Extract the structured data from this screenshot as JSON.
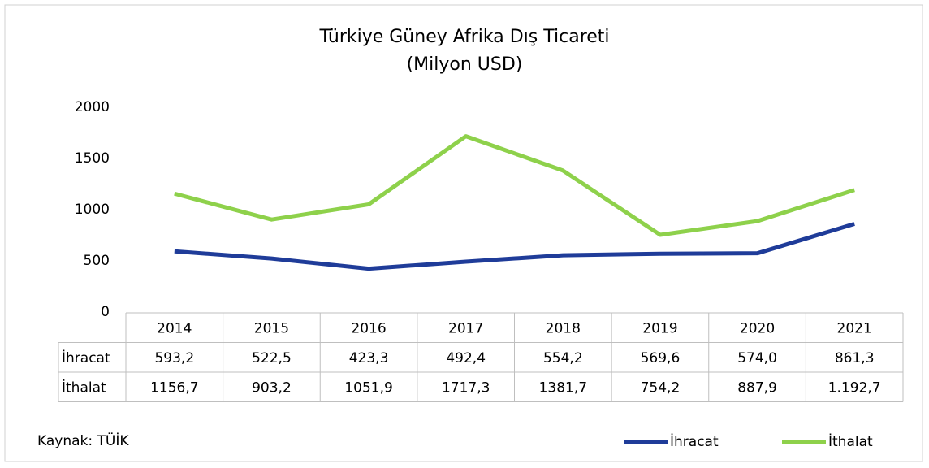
{
  "chart_data": {
    "type": "line",
    "title": "Türkiye Güney Afrika Dış Ticareti",
    "subtitle": "(Milyon USD)",
    "source": "Kaynak: TÜİK",
    "categories": [
      "2014",
      "2015",
      "2016",
      "2017",
      "2018",
      "2019",
      "2020",
      "2021"
    ],
    "series": [
      {
        "name": "İhracat",
        "color": "#1f3c99",
        "values": [
          593.2,
          522.5,
          423.3,
          492.4,
          554.2,
          569.6,
          574.0,
          861.3
        ],
        "value_labels": [
          "593,2",
          "522,5",
          "423,3",
          "492,4",
          "554,2",
          "569,6",
          "574,0",
          "861,3"
        ]
      },
      {
        "name": "İthalat",
        "color": "#8ed14b",
        "values": [
          1156.7,
          903.2,
          1051.9,
          1717.3,
          1381.7,
          754.2,
          887.9,
          1192.7
        ],
        "value_labels": [
          "1156,7",
          "903,2",
          "1051,9",
          "1717,3",
          "1381,7",
          "754,2",
          "887,9",
          "1.192,7"
        ]
      }
    ],
    "ylim": [
      0,
      2000
    ],
    "yticks": [
      0,
      500,
      1000,
      1500,
      2000
    ],
    "legend": "bottom-right"
  }
}
